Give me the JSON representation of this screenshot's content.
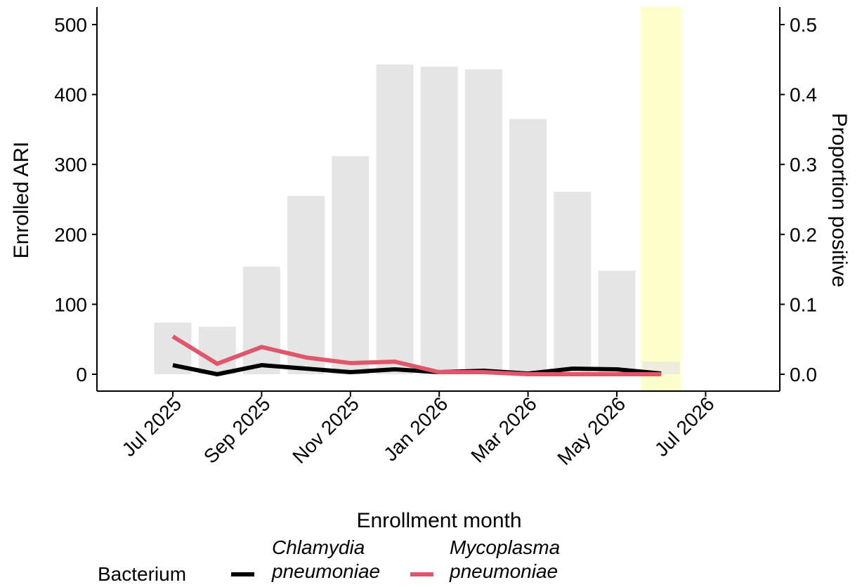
{
  "chart_data": {
    "type": "bar+line",
    "title": "",
    "xlabel": "Enrollment month",
    "ylabel_left": "Enrolled ARI",
    "ylabel_right": "Proportion positive",
    "x_ticks": [
      "Jul 2025",
      "Sep 2025",
      "Nov 2025",
      "Jan 2026",
      "Mar 2026",
      "May 2026",
      "Jul 2026"
    ],
    "y_left_ticks": [
      "0",
      "100",
      "200",
      "300",
      "400",
      "500"
    ],
    "y_right_ticks": [
      "0.0",
      "0.1",
      "0.2",
      "0.3",
      "0.4",
      "0.5"
    ],
    "ylim_left": [
      0,
      500
    ],
    "ylim_right": [
      0,
      0.5
    ],
    "months": [
      "2025-07",
      "2025-08",
      "2025-09",
      "2025-10",
      "2025-11",
      "2025-12",
      "2026-01",
      "2026-02",
      "2026-03",
      "2026-04",
      "2026-05",
      "2026-06"
    ],
    "bars": {
      "name": "Enrolled ARI",
      "color": "#e5e5e5",
      "values": [
        74,
        68,
        154,
        255,
        312,
        443,
        440,
        436,
        365,
        261,
        148,
        18
      ]
    },
    "highlight": {
      "month": "2026-06",
      "color": "#ffffcc"
    },
    "series": [
      {
        "name": "Chlamydia pneumoniae",
        "color": "#000000",
        "values": [
          0.013,
          0.0,
          0.013,
          0.008,
          0.003,
          0.007,
          0.003,
          0.005,
          0.001,
          0.008,
          0.007,
          0.001
        ]
      },
      {
        "name": "Mycoplasma pneumoniae",
        "color": "#e0566b",
        "values": [
          0.054,
          0.015,
          0.039,
          0.024,
          0.016,
          0.018,
          0.003,
          0.003,
          0.0,
          0.0,
          0.0,
          0.0
        ]
      }
    ],
    "legend": {
      "title": "Bacterium",
      "position": "bottom",
      "items": [
        {
          "line1": "Chlamydia",
          "line2": "pneumoniae",
          "color": "#000000"
        },
        {
          "line1": "Mycoplasma",
          "line2": "pneumoniae",
          "color": "#e0566b"
        }
      ]
    },
    "grid": false
  }
}
